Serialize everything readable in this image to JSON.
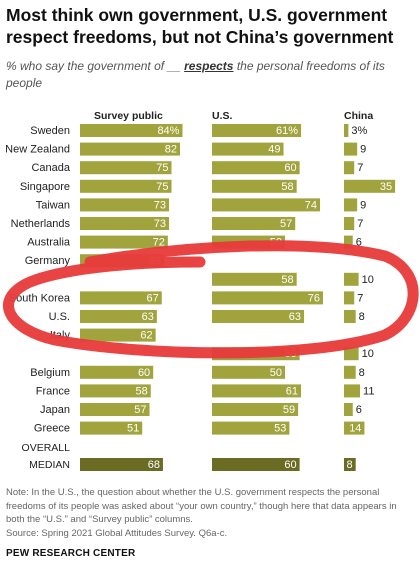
{
  "title": "Most think own government, U.S. government respect freedoms, but not China’s government",
  "subtitle": {
    "before": "% who say the government of __ ",
    "keyword": "respects",
    "after": " the personal freedoms of its people"
  },
  "chart_data": {
    "type": "bar",
    "columns": [
      "Survey public",
      "U.S.",
      "China"
    ],
    "categories": [
      "Sweden",
      "New Zealand",
      "Canada",
      "Singapore",
      "Taiwan",
      "Netherlands",
      "Australia",
      "Germany",
      "",
      "South Korea",
      "U.S.",
      "Italy",
      "",
      "Belgium",
      "France",
      "Japan",
      "Greece"
    ],
    "series": [
      {
        "name": "Survey public",
        "values": [
          84,
          82,
          75,
          75,
          73,
          73,
          72,
          69,
          0,
          67,
          63,
          62,
          0,
          60,
          58,
          57,
          51
        ],
        "labels": [
          "84%",
          "82",
          "75",
          "75",
          "73",
          "73",
          "72",
          "69",
          "",
          "67",
          "63",
          "62",
          "",
          "60",
          "58",
          "57",
          "51"
        ]
      },
      {
        "name": "U.S.",
        "values": [
          61,
          49,
          60,
          58,
          74,
          57,
          50,
          0,
          58,
          76,
          63,
          0,
          60,
          50,
          61,
          59,
          53
        ],
        "labels": [
          "61%",
          "49",
          "60",
          "58",
          "74",
          "57",
          "50",
          "",
          "58",
          "76",
          "63",
          "",
          "60",
          "50",
          "61",
          "59",
          "53"
        ]
      },
      {
        "name": "China",
        "values": [
          3,
          9,
          7,
          35,
          9,
          7,
          6,
          0,
          10,
          7,
          8,
          0,
          10,
          8,
          11,
          6,
          14
        ],
        "labels": [
          "3%",
          "9",
          "7",
          "35",
          "9",
          "7",
          "6",
          "",
          "10",
          "7",
          "8",
          "",
          "10",
          "8",
          "11",
          "6",
          "14"
        ]
      }
    ],
    "median": {
      "label": [
        "OVERALL",
        "MEDIAN"
      ],
      "values": [
        68,
        60,
        8
      ]
    },
    "colors": {
      "bar": "#a1a43d",
      "median_bar": "#6a6c24",
      "label": "#ffffff",
      "annotation": "#e83a3a"
    }
  },
  "note": "Note: In the U.S., the question about whether the U.S. government respects the personal freedoms of its people was asked about “your own country,” though here that data appears in both the “U.S.” and “Survey public” columns.",
  "source": "Source: Spring 2021 Global Attitudes Survey. Q6a-c.",
  "org": "PEW RESEARCH CENTER"
}
